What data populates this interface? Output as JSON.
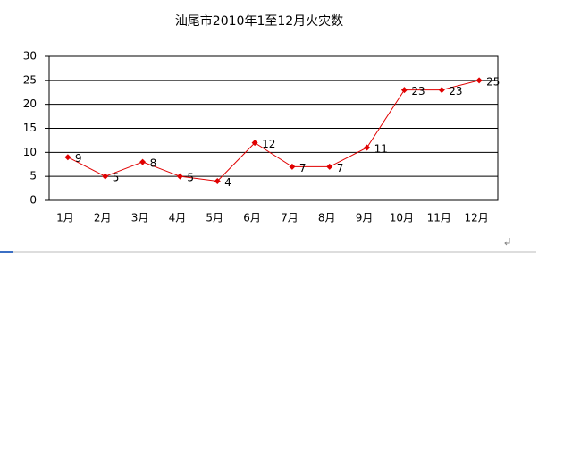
{
  "chart_data": {
    "type": "line",
    "title": "汕尾市2010年1至12月火灾数",
    "categories": [
      "1月",
      "2月",
      "3月",
      "4月",
      "5月",
      "6月",
      "7月",
      "8月",
      "9月",
      "10月",
      "11月",
      "12月"
    ],
    "values": [
      9,
      5,
      8,
      5,
      4,
      12,
      7,
      7,
      11,
      23,
      23,
      25
    ],
    "color": "#e00000",
    "ylim": [
      0,
      30
    ],
    "yticks": [
      0,
      5,
      10,
      15,
      20,
      25,
      30
    ],
    "grid": true
  }
}
